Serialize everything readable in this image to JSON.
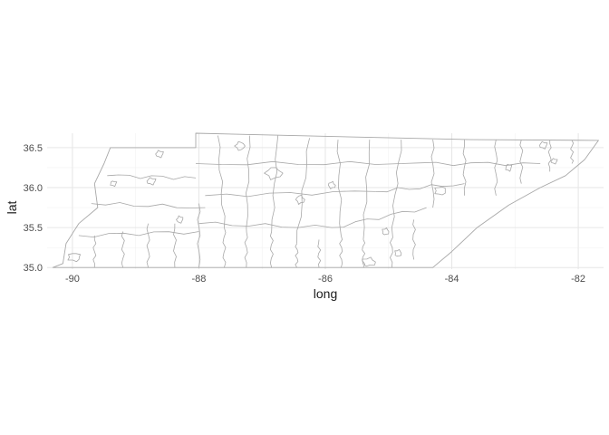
{
  "chart_data": {
    "type": "map",
    "subject": "county outlines",
    "xlabel": "long",
    "ylabel": "lat",
    "xlim": [
      -90.4,
      -81.6
    ],
    "ylim": [
      34.98,
      36.68
    ],
    "xticks": [
      -90,
      -88,
      -86,
      -84,
      -82
    ],
    "yticks": [
      35.0,
      35.5,
      36.0,
      36.5
    ],
    "xtick_labels": [
      "-90",
      "-88",
      "-86",
      "-84",
      "-82"
    ],
    "ytick_labels": [
      "35.0",
      "35.5",
      "36.0",
      "36.5"
    ],
    "grid": true,
    "line_color": "#a8a8a8",
    "background": "#ffffff",
    "state_outline": [
      [
        -90.31,
        35.0
      ],
      [
        -88.2,
        35.0
      ],
      [
        -85.6,
        35.0
      ],
      [
        -84.3,
        35.0
      ],
      [
        -84.0,
        35.2
      ],
      [
        -83.6,
        35.5
      ],
      [
        -83.1,
        35.78
      ],
      [
        -82.6,
        36.0
      ],
      [
        -82.2,
        36.15
      ],
      [
        -81.9,
        36.35
      ],
      [
        -81.68,
        36.59
      ],
      [
        -83.7,
        36.6
      ],
      [
        -86.5,
        36.65
      ],
      [
        -88.05,
        36.68
      ],
      [
        -88.05,
        36.5
      ],
      [
        -89.4,
        36.5
      ],
      [
        -89.5,
        36.3
      ],
      [
        -89.65,
        36.05
      ],
      [
        -89.6,
        35.75
      ],
      [
        -89.9,
        35.55
      ],
      [
        -90.1,
        35.3
      ],
      [
        -90.15,
        35.05
      ],
      [
        -90.31,
        35.0
      ]
    ],
    "county_lines": [
      [
        [
          -89.65,
          35.0
        ],
        [
          -89.65,
          35.4
        ]
      ],
      [
        [
          -89.2,
          35.0
        ],
        [
          -89.2,
          35.45
        ]
      ],
      [
        [
          -88.8,
          35.0
        ],
        [
          -88.8,
          35.55
        ]
      ],
      [
        [
          -88.38,
          35.0
        ],
        [
          -88.38,
          35.55
        ]
      ],
      [
        [
          -88.0,
          35.0
        ],
        [
          -88.0,
          35.8
        ]
      ],
      [
        [
          -87.6,
          35.0
        ],
        [
          -87.6,
          35.5
        ]
      ],
      [
        [
          -87.25,
          35.0
        ],
        [
          -87.25,
          35.5
        ]
      ],
      [
        [
          -86.85,
          35.0
        ],
        [
          -86.85,
          35.45
        ]
      ],
      [
        [
          -86.45,
          35.0
        ],
        [
          -86.45,
          35.3
        ]
      ],
      [
        [
          -86.1,
          35.0
        ],
        [
          -86.1,
          35.35
        ]
      ],
      [
        [
          -85.75,
          35.0
        ],
        [
          -85.75,
          35.4
        ]
      ],
      [
        [
          -85.4,
          35.0
        ],
        [
          -85.4,
          35.35
        ]
      ],
      [
        [
          -84.95,
          35.0
        ],
        [
          -84.95,
          35.5
        ]
      ],
      [
        [
          -84.6,
          35.1
        ],
        [
          -84.6,
          35.6
        ]
      ],
      [
        [
          -89.9,
          35.4
        ],
        [
          -88.0,
          35.45
        ]
      ],
      [
        [
          -89.7,
          35.8
        ],
        [
          -87.9,
          35.75
        ]
      ],
      [
        [
          -89.45,
          36.15
        ],
        [
          -88.05,
          36.12
        ]
      ],
      [
        [
          -88.0,
          35.55
        ],
        [
          -85.9,
          35.5
        ]
      ],
      [
        [
          -87.9,
          35.9
        ],
        [
          -85.2,
          35.95
        ]
      ],
      [
        [
          -88.05,
          36.3
        ],
        [
          -84.8,
          36.3
        ]
      ],
      [
        [
          -85.9,
          35.5
        ],
        [
          -84.4,
          35.75
        ]
      ],
      [
        [
          -85.2,
          35.95
        ],
        [
          -83.8,
          36.05
        ]
      ],
      [
        [
          -84.8,
          36.3
        ],
        [
          -82.6,
          36.3
        ]
      ],
      [
        [
          -87.7,
          36.65
        ],
        [
          -87.6,
          35.5
        ]
      ],
      [
        [
          -87.2,
          36.65
        ],
        [
          -87.25,
          35.5
        ]
      ],
      [
        [
          -86.75,
          36.65
        ],
        [
          -86.85,
          35.45
        ]
      ],
      [
        [
          -86.25,
          36.62
        ],
        [
          -86.45,
          35.3
        ]
      ],
      [
        [
          -85.8,
          36.6
        ],
        [
          -85.75,
          35.4
        ]
      ],
      [
        [
          -85.3,
          36.6
        ],
        [
          -85.4,
          35.35
        ]
      ],
      [
        [
          -84.8,
          36.6
        ],
        [
          -84.95,
          35.5
        ]
      ],
      [
        [
          -84.3,
          36.6
        ],
        [
          -84.3,
          35.75
        ]
      ],
      [
        [
          -83.8,
          36.6
        ],
        [
          -83.8,
          35.9
        ]
      ],
      [
        [
          -83.3,
          36.6
        ],
        [
          -83.3,
          35.9
        ]
      ],
      [
        [
          -82.9,
          36.6
        ],
        [
          -82.9,
          36.05
        ]
      ],
      [
        [
          -82.45,
          36.6
        ],
        [
          -82.45,
          36.2
        ]
      ],
      [
        [
          -82.1,
          36.59
        ],
        [
          -82.1,
          36.3
        ]
      ]
    ],
    "city_outlines": [
      [
        -88.75,
        36.08,
        0.07,
        0.04
      ],
      [
        -87.35,
        36.52,
        0.07,
        0.05
      ],
      [
        -86.82,
        36.18,
        0.12,
        0.07
      ],
      [
        -86.4,
        35.85,
        0.06,
        0.05
      ],
      [
        -85.9,
        36.03,
        0.05,
        0.04
      ],
      [
        -85.32,
        35.07,
        0.1,
        0.05
      ],
      [
        -84.18,
        35.96,
        0.09,
        0.05
      ],
      [
        -82.55,
        36.53,
        0.06,
        0.04
      ],
      [
        -82.38,
        36.33,
        0.05,
        0.03
      ],
      [
        -89.97,
        35.13,
        0.1,
        0.05
      ],
      [
        -88.3,
        35.6,
        0.05,
        0.04
      ],
      [
        -85.05,
        35.45,
        0.05,
        0.04
      ],
      [
        -84.85,
        35.18,
        0.05,
        0.04
      ],
      [
        -83.1,
        36.25,
        0.05,
        0.04
      ],
      [
        -89.35,
        36.05,
        0.05,
        0.03
      ],
      [
        -88.62,
        36.42,
        0.06,
        0.04
      ]
    ]
  }
}
